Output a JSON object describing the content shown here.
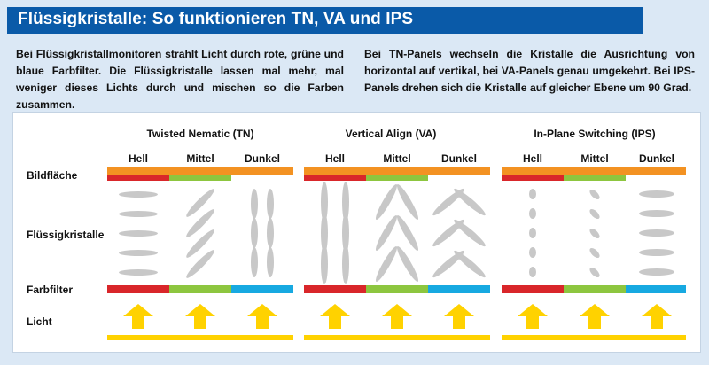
{
  "header": {
    "title": "Flüssigkristalle: So funktionieren TN, VA und IPS"
  },
  "intro": {
    "left": "Bei Flüssigkristallmonitoren strahlt Licht durch rote, grüne und blaue Farbfilter. Die Flüssigkristalle lassen mal mehr, mal weniger dieses Lichts durch und mischen so die Farben zusammen.",
    "right": "Bei TN-Panels wechseln die Kristalle die Ausrichtung von horizontal auf vertikal, bei VA-Panels genau umgekehrt. Bei IPS-Panels drehen sich die Kristalle auf gleicher Ebene um 90 Grad."
  },
  "rows": {
    "screen": "Bildfläche",
    "crystals": "Flüssigkristalle",
    "filter": "Farbfilter",
    "light": "Licht"
  },
  "panels": [
    {
      "title": "Twisted Nematic (TN)",
      "states": [
        "Hell",
        "Mittel",
        "Dunkel"
      ],
      "crystal_angles_deg": [
        0,
        -45,
        -90
      ]
    },
    {
      "title": "Vertical Align (VA)",
      "states": [
        "Hell",
        "Mittel",
        "Dunkel"
      ],
      "crystal_angles_deg": [
        -90,
        -60,
        -40
      ]
    },
    {
      "title": "In-Plane Switching (IPS)",
      "states": [
        "Hell",
        "Mittel",
        "Dunkel"
      ],
      "crystal_angles_deg": [
        90,
        45,
        0
      ]
    }
  ],
  "colors": {
    "header_bg": "#0a5aa8",
    "page_bg": "#dbe8f5",
    "orange": "#f39222",
    "red": "#d9262a",
    "green": "#8dc63f",
    "cyan": "#17a9e1",
    "yellow": "#ffd200",
    "crystal": "#c8c8c8"
  }
}
